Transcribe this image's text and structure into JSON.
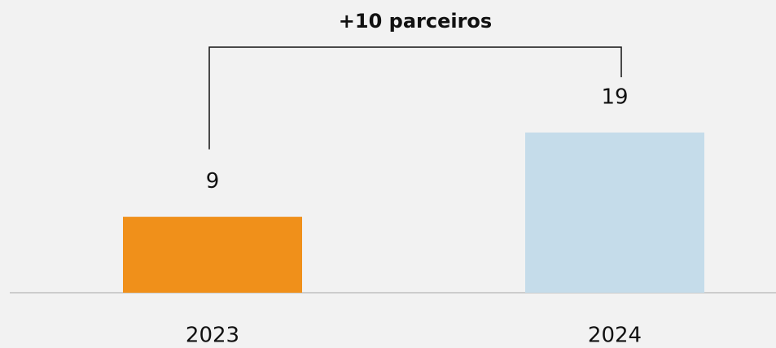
{
  "chart_data": {
    "type": "bar",
    "annotation": "+10 parceiros",
    "categories": [
      "2023",
      "2024"
    ],
    "values": [
      9,
      19
    ],
    "colors": [
      "#f0901a",
      "#c5dcea"
    ]
  }
}
